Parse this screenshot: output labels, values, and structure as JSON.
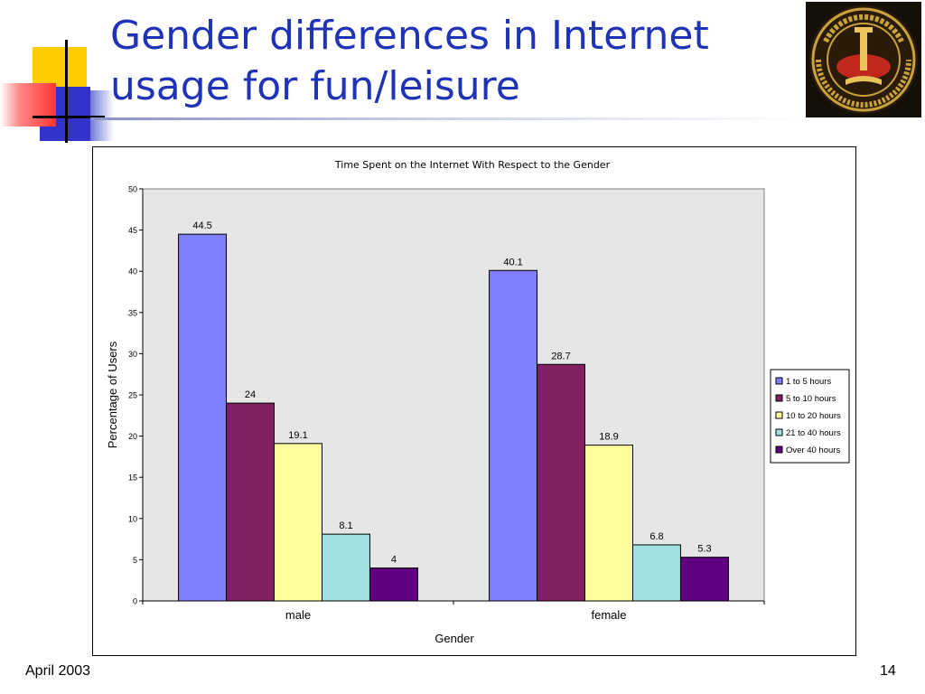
{
  "slide": {
    "title": "Gender differences in Internet usage for fun/leisure",
    "footer_date": "April 2003",
    "page_number": "14",
    "title_color": "#1f33b8"
  },
  "chart_data": {
    "type": "bar",
    "title": "Time Spent on the Internet With Respect to the Gender",
    "xlabel": "Gender",
    "ylabel": "Percentage of Users",
    "categories": [
      "male",
      "female"
    ],
    "ylim": [
      0,
      50
    ],
    "yticks": [
      0,
      5,
      10,
      15,
      20,
      25,
      30,
      35,
      40,
      45,
      50
    ],
    "grid": false,
    "legend_position": "right",
    "plot_background": "#e6e6e6",
    "series": [
      {
        "name": "1 to 5 hours",
        "values": [
          44.5,
          40.1
        ],
        "labels": [
          "44.5",
          "40.1"
        ],
        "color": "#8080ff"
      },
      {
        "name": "5 to 10 hours",
        "values": [
          24,
          28.7
        ],
        "labels": [
          "24",
          "28.7"
        ],
        "color": "#802060"
      },
      {
        "name": "10 to 20 hours",
        "values": [
          19.1,
          18.9
        ],
        "labels": [
          "19.1",
          "18.9"
        ],
        "color": "#ffffa0"
      },
      {
        "name": "21 to 40 hours",
        "values": [
          8.1,
          6.8
        ],
        "labels": [
          "8.1",
          "6.8"
        ],
        "color": "#a0e0e0"
      },
      {
        "name": "Over 40 hours",
        "values": [
          4,
          5.3
        ],
        "labels": [
          "4",
          "5.3"
        ],
        "color": "#600080"
      }
    ]
  }
}
